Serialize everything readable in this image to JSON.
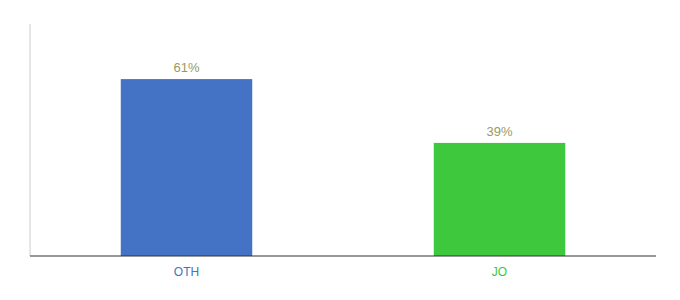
{
  "chart_data": {
    "type": "bar",
    "categories": [
      "OTH",
      "JO"
    ],
    "values": [
      61,
      39
    ],
    "colors": [
      "#4472C4",
      "#3DC83D"
    ],
    "ylim": [
      0,
      80
    ],
    "data_labels": true,
    "value_labels": [
      "61%",
      "39%"
    ],
    "tick_labels": "x"
  }
}
